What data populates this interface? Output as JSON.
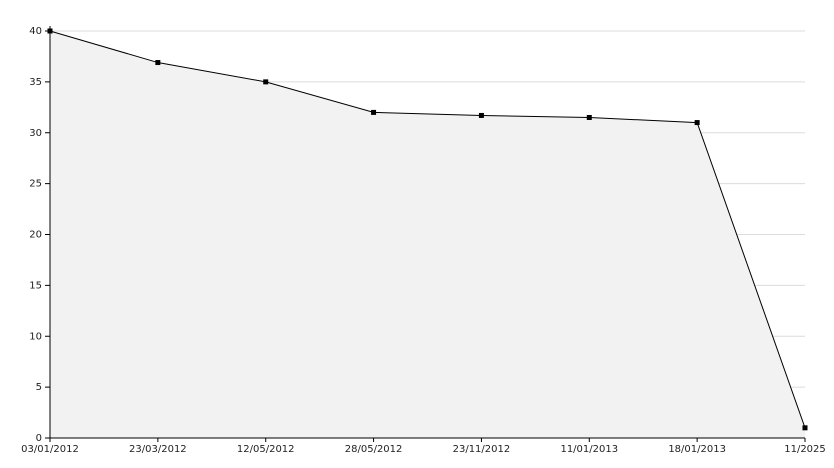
{
  "chart_data": {
    "type": "area",
    "categories": [
      "03/01/2012",
      "23/03/2012",
      "12/05/2012",
      "28/05/2012",
      "23/11/2012",
      "11/01/2013",
      "18/01/2013",
      "11/2025"
    ],
    "values": [
      40,
      36.9,
      35,
      32,
      31.7,
      31.5,
      31,
      1
    ],
    "color": "#000000",
    "fill": "#f2f2f2",
    "ylim": [
      0,
      40
    ],
    "yticks": [
      0,
      5,
      10,
      15,
      20,
      25,
      30,
      35,
      40
    ],
    "grid": true
  }
}
